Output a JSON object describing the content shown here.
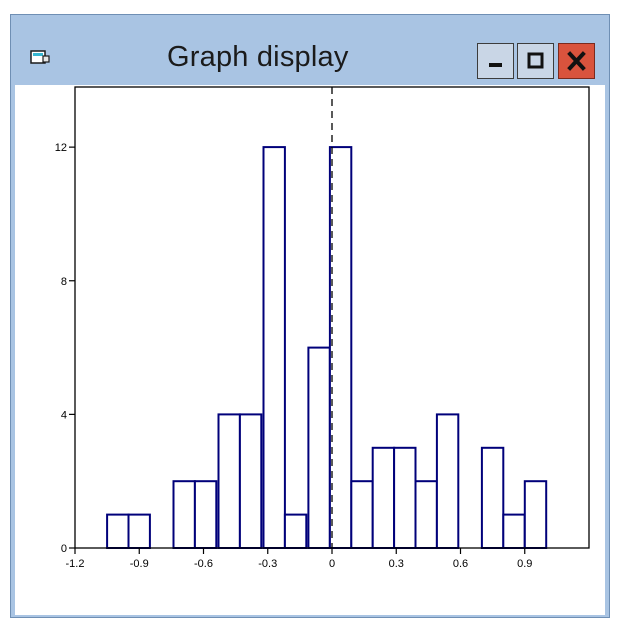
{
  "window": {
    "title": "Graph display",
    "controls": [
      "minimize",
      "maximize",
      "close"
    ],
    "colors": {
      "frame": "#a9c4e3",
      "close": "#d9533d",
      "bar_stroke": "#00007a"
    }
  },
  "chart_data": {
    "type": "bar",
    "title": "",
    "xlabel": "",
    "ylabel": "",
    "x_ticks": [
      "-1.2",
      "-0.9",
      "-0.6",
      "-0.3",
      "0",
      "0.3",
      "0.6",
      "0.9"
    ],
    "y_ticks": [
      "0",
      "4",
      "8",
      "12"
    ],
    "xlim": [
      -1.2,
      1.2
    ],
    "ylim": [
      0,
      13.8
    ],
    "bin_width": 0.1,
    "bins": [
      {
        "start": -1.05,
        "value": 1
      },
      {
        "start": -0.95,
        "value": 1
      },
      {
        "start": -0.74,
        "value": 2
      },
      {
        "start": -0.64,
        "value": 2
      },
      {
        "start": -0.53,
        "value": 4
      },
      {
        "start": -0.43,
        "value": 4
      },
      {
        "start": -0.32,
        "value": 12
      },
      {
        "start": -0.22,
        "value": 1
      },
      {
        "start": -0.11,
        "value": 6
      },
      {
        "start": -0.01,
        "value": 12
      },
      {
        "start": 0.09,
        "value": 2
      },
      {
        "start": 0.19,
        "value": 3
      },
      {
        "start": 0.29,
        "value": 3
      },
      {
        "start": 0.39,
        "value": 2
      },
      {
        "start": 0.49,
        "value": 4
      },
      {
        "start": 0.7,
        "value": 3
      },
      {
        "start": 0.8,
        "value": 1
      },
      {
        "start": 0.9,
        "value": 2
      }
    ],
    "reference_line": {
      "x": 0,
      "style": "dashed"
    },
    "grid": false
  }
}
